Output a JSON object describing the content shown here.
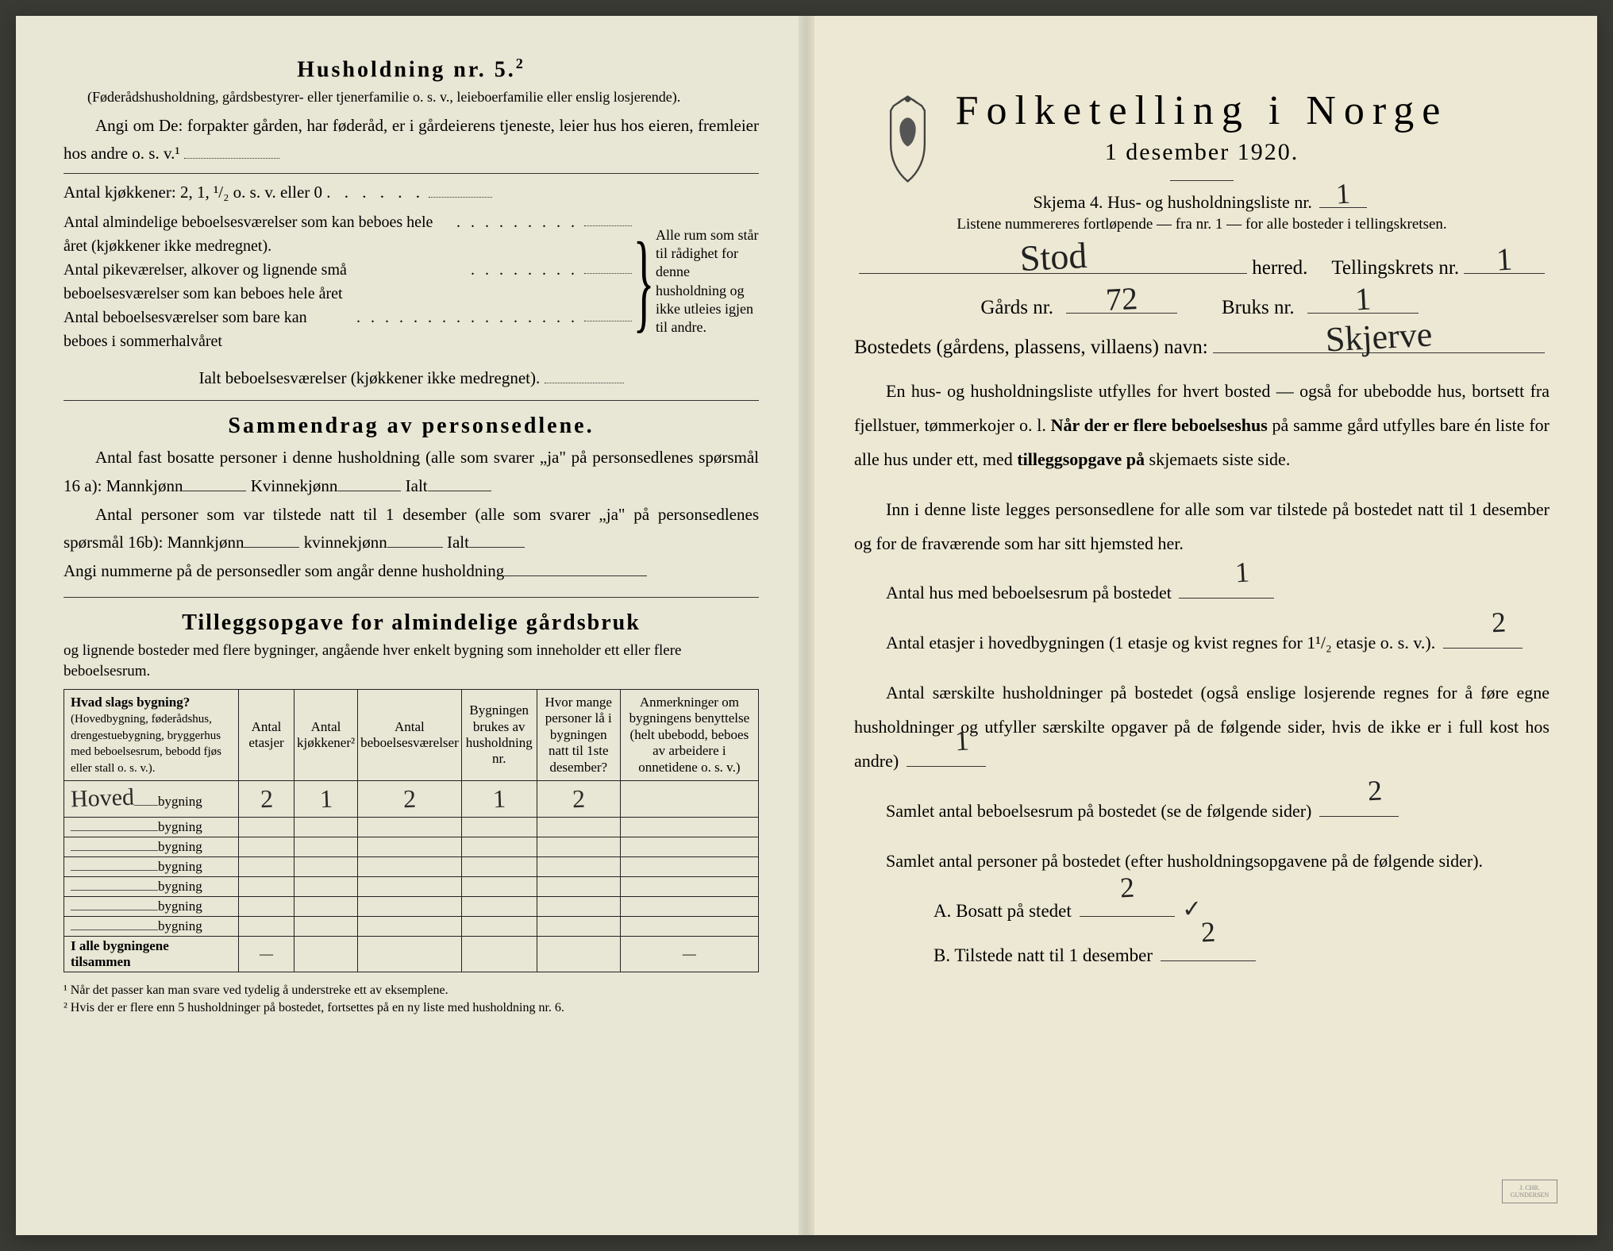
{
  "left": {
    "h5_title": "Husholdning nr. 5.",
    "h5_sup": "2",
    "h5_note": "(Føderådshusholdning, gårdsbestyrer- eller tjenerfamilie o. s. v., leieboerfamilie eller enslig losjerende).",
    "h5_p1": "Angi om De: forpakter gården, har føderåd, er i gårdeierens tjeneste, leier hus hos eieren, fremleier hos andre o. s. v.¹",
    "kj_line": "Antal kjøkkener: 2, 1, ¹/₂ o. s. v. eller 0",
    "brace_rows": [
      "Antal almindelige beboelsesværelser som kan beboes hele året (kjøkkener ikke medregnet).",
      "Antal pikeværelser, alkover og lignende små beboelsesværelser som kan beboes hele året",
      "Antal beboelsesværelser som bare kan beboes i sommerhalvåret"
    ],
    "brace_right": "Alle rum som står til rådighet for denne husholdning og ikke utleies igjen til andre.",
    "ialt_line": "Ialt beboelsesværelser (kjøkkener ikke medregnet).",
    "sammendrag_title": "Sammendrag av personsedlene.",
    "s_p1a": "Antal fast bosatte personer i denne husholdning (alle som svarer „ja\" på personsedlenes spørsmål 16 a): Mannkjønn",
    "s_p1b": "Kvinnekjønn",
    "s_p1c": "Ialt",
    "s_p2a": "Antal personer som var tilstede natt til 1 desember (alle som svarer „ja\" på personsedlenes spørsmål 16b): Mannkjønn",
    "s_p2b": "kvinnekjønn",
    "s_p2c": "Ialt",
    "s_p3": "Angi nummerne på de personsedler som angår denne husholdning",
    "tillegg_title": "Tilleggsopgave for almindelige gårdsbruk",
    "tillegg_sub": "og lignende bosteder med flere bygninger, angående hver enkelt bygning som inneholder ett eller flere beboelsesrum.",
    "table": {
      "headers": [
        "Hvad slags bygning?\n(Hovedbygning, føderådshus, drengestuebygning, bryggerhus med beboelsesrum, bebodd fjøs eller stall o. s. v.).",
        "Antal etasjer",
        "Antal kjøkkener²",
        "Antal beboelsesværelser",
        "Bygningen brukes av husholdning nr.",
        "Hvor mange personer lå i bygningen natt til 1ste desember?",
        "Anmerkninger om bygningens benyttelse (helt ubebodd, beboes av arbeidere i onnetidene o. s. v.)"
      ],
      "rows": [
        {
          "name_hw": "Hoved",
          "suffix": "bygning",
          "c": [
            "2",
            "1",
            "2",
            "1",
            "2",
            ""
          ]
        },
        {
          "name_hw": "",
          "suffix": "bygning",
          "c": [
            "",
            "",
            "",
            "",
            "",
            ""
          ]
        },
        {
          "name_hw": "",
          "suffix": "bygning",
          "c": [
            "",
            "",
            "",
            "",
            "",
            ""
          ]
        },
        {
          "name_hw": "",
          "suffix": "bygning",
          "c": [
            "",
            "",
            "",
            "",
            "",
            ""
          ]
        },
        {
          "name_hw": "",
          "suffix": "bygning",
          "c": [
            "",
            "",
            "",
            "",
            "",
            ""
          ]
        },
        {
          "name_hw": "",
          "suffix": "bygning",
          "c": [
            "",
            "",
            "",
            "",
            "",
            ""
          ]
        },
        {
          "name_hw": "",
          "suffix": "bygning",
          "c": [
            "",
            "",
            "",
            "",
            "",
            ""
          ]
        }
      ],
      "total_label": "I alle bygningene tilsammen",
      "total_cells": [
        "—",
        "",
        "",
        "",
        "",
        "—"
      ]
    },
    "fn1": "¹  Når det passer kan man svare ved tydelig å understreke ett av eksemplene.",
    "fn2": "²  Hvis der er flere enn 5 husholdninger på bostedet, fortsettes på en ny liste med husholdning nr. 6."
  },
  "right": {
    "title": "Folketelling i Norge",
    "date": "1 desember 1920.",
    "form_line_a": "Skjema 4.  Hus- og husholdningsliste nr.",
    "form_nr_hw": "1",
    "instr": "Listene nummereres fortløpende — fra nr. 1 — for alle bosteder i tellingskretsen.",
    "herred_hw": "Stod",
    "herred_label": "herred.",
    "krets_label": "Tellingskrets nr.",
    "krets_hw": "1",
    "gard_label": "Gårds nr.",
    "gard_hw": "72",
    "bruk_label": "Bruks nr.",
    "bruk_hw": "1",
    "bosted_label": "Bostedets (gårdens, plassens, villaens) navn:",
    "bosted_hw": "Skjerve",
    "para1": "En hus- og husholdningsliste utfylles for hvert bosted — også for ubebodde hus, bortsett fra fjellstuer, tømmerkojer o. l. Når der er flere beboelseshus på samme gård utfylles bare én liste for alle hus under ett, med tilleggsopgave på skjemaets siste side.",
    "para2": "Inn i denne liste legges personsedlene for alle som var tilstede på bostedet natt til 1 desember og for de fraværende som har sitt hjemsted her.",
    "q1": "Antal hus med beboelsesrum på bostedet",
    "q1_hw": "1",
    "q2a": "Antal etasjer i hovedbygningen (1 etasje og kvist regnes for 1¹/₂ etasje o. s. v.).",
    "q2_hw": "2",
    "q3": "Antal særskilte husholdninger på bostedet (også enslige losjerende regnes for å føre egne husholdninger og utfyller særskilte opgaver på de følgende sider, hvis de ikke er i full kost hos andre)",
    "q3_hw": "1",
    "q4": "Samlet antal beboelsesrum på bostedet (se de følgende sider)",
    "q4_hw": "2",
    "q5": "Samlet antal personer på bostedet (efter husholdningsopgavene på de følgende sider).",
    "qA": "A.  Bosatt på stedet",
    "qA_hw": "2",
    "qA_mark": "✓",
    "qB": "B.  Tilstede natt til 1 desember",
    "qB_hw": "2"
  },
  "colors": {
    "paper_left": "#e8e6d4",
    "paper_right": "#ede8d3",
    "ink": "#222222",
    "border": "#333333"
  }
}
